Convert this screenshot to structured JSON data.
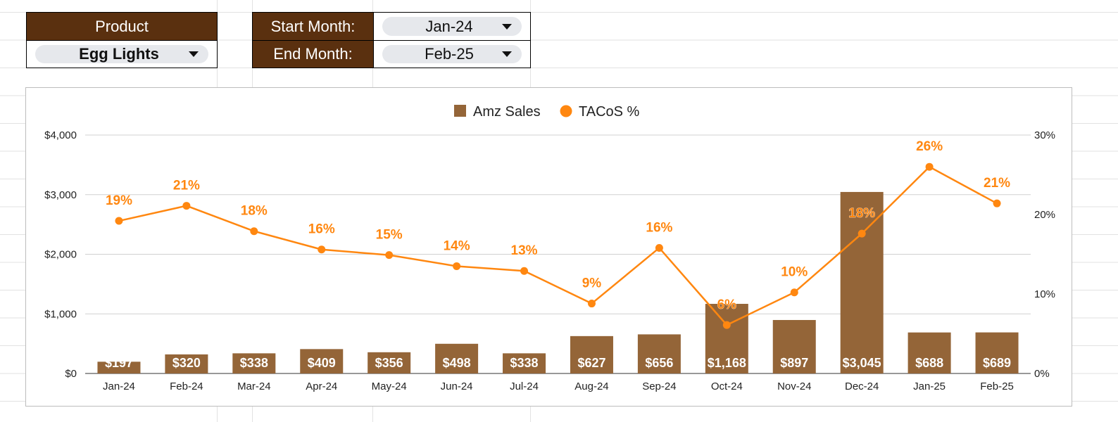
{
  "controls": {
    "product_label": "Product",
    "product_value": "Egg Lights",
    "start_label": "Start Month:",
    "start_value": "Jan-24",
    "end_label": "End Month:",
    "end_value": "Feb-25"
  },
  "colors": {
    "header_bg": "#5a300f",
    "bar": "#946538",
    "line": "#ff8710"
  },
  "chart_data": {
    "type": "bar",
    "legend_position": "top",
    "grid": true,
    "categories": [
      "Jan-24",
      "Feb-24",
      "Mar-24",
      "Apr-24",
      "May-24",
      "Jun-24",
      "Jul-24",
      "Aug-24",
      "Sep-24",
      "Oct-24",
      "Nov-24",
      "Dec-24",
      "Jan-25",
      "Feb-25"
    ],
    "series": [
      {
        "name": "Amz Sales",
        "type": "bar",
        "axis": "left",
        "values": [
          197,
          320,
          338,
          409,
          356,
          498,
          338,
          627,
          656,
          1168,
          897,
          3045,
          688,
          689
        ],
        "labels": [
          "$197",
          "$320",
          "$338",
          "$409",
          "$356",
          "$498",
          "$338",
          "$627",
          "$656",
          "$1,168",
          "$897",
          "$3,045",
          "$688",
          "$689"
        ]
      },
      {
        "name": "TACoS %",
        "type": "line",
        "axis": "right",
        "values": [
          19.2,
          21.1,
          17.9,
          15.6,
          14.9,
          13.5,
          12.9,
          8.8,
          15.8,
          6.1,
          10.2,
          17.6,
          26.0,
          21.4
        ],
        "labels": [
          "19%",
          "21%",
          "18%",
          "16%",
          "15%",
          "14%",
          "13%",
          "9%",
          "16%",
          "6%",
          "10%",
          "18%",
          "26%",
          "21%"
        ]
      }
    ],
    "y_left": {
      "min": 0,
      "max": 4000,
      "ticks": [
        "$0",
        "$1,000",
        "$2,000",
        "$3,000",
        "$4,000"
      ]
    },
    "y_right": {
      "min": 0,
      "max": 30,
      "ticks": [
        "0%",
        "10%",
        "20%",
        "30%"
      ]
    }
  }
}
